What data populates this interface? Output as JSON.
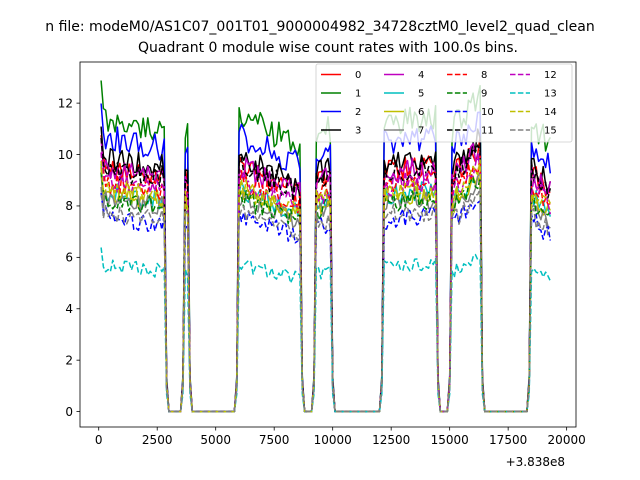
{
  "figure": {
    "suptitle": "n file: modeM0/AS1C07_001T01_9000004982_34728cztM0_level2_quad_clean",
    "title": "Quadrant 0 module wise count rates with 100.0s bins.",
    "x_offset_label": "+3.838e8"
  },
  "chart_data": {
    "type": "line",
    "title": "Quadrant 0 module wise count rates with 100.0s bins.",
    "xlabel": "",
    "ylabel": "",
    "x_offset": 383800000,
    "xlim": [
      -800,
      20400
    ],
    "ylim": [
      -0.6,
      13.6
    ],
    "xticks": [
      0,
      2500,
      5000,
      7500,
      10000,
      12500,
      15000,
      17500,
      20000
    ],
    "xtick_labels": [
      "0",
      "2500",
      "5000",
      "7500",
      "10000",
      "12500",
      "15000",
      "17500",
      "20000"
    ],
    "yticks": [
      0,
      2,
      4,
      6,
      8,
      10,
      12
    ],
    "ytick_labels": [
      "0",
      "2",
      "4",
      "6",
      "8",
      "10",
      "12"
    ],
    "grid": false,
    "legend_position": "top-right",
    "segments": [
      {
        "x_start": 100,
        "x_end": 2800,
        "start_factor": 1.0,
        "end_factor": 0.96
      },
      {
        "x_start": 3700,
        "x_end": 3800,
        "start_factor": 0.95,
        "end_factor": 0.95
      },
      {
        "x_start": 6000,
        "x_end": 8600,
        "start_factor": 1.0,
        "end_factor": 0.9
      },
      {
        "x_start": 9300,
        "x_end": 9900,
        "start_factor": 0.95,
        "end_factor": 0.95
      },
      {
        "x_start": 12200,
        "x_end": 14400,
        "start_factor": 0.98,
        "end_factor": 1.0
      },
      {
        "x_start": 15100,
        "x_end": 16300,
        "start_factor": 0.95,
        "end_factor": 1.08
      },
      {
        "x_start": 18500,
        "x_end": 19300,
        "start_factor": 0.98,
        "end_factor": 0.9
      }
    ],
    "series": [
      {
        "name": "0",
        "level": 9.6,
        "color": "#ff0000",
        "dash": "solid"
      },
      {
        "name": "1",
        "level": 11.5,
        "color": "#008000",
        "dash": "solid"
      },
      {
        "name": "2",
        "level": 10.7,
        "color": "#0000ff",
        "dash": "solid"
      },
      {
        "name": "3",
        "level": 9.9,
        "color": "#000000",
        "dash": "solid"
      },
      {
        "name": "4",
        "level": 9.5,
        "color": "#bf00bf",
        "dash": "solid"
      },
      {
        "name": "5",
        "level": 8.6,
        "color": "#00bfbf",
        "dash": "solid"
      },
      {
        "name": "6",
        "level": 8.5,
        "color": "#bfbf00",
        "dash": "solid"
      },
      {
        "name": "7",
        "level": 8.3,
        "color": "#808080",
        "dash": "solid"
      },
      {
        "name": "8",
        "level": 9.0,
        "color": "#ff0000",
        "dash": "dashed"
      },
      {
        "name": "9",
        "level": 8.3,
        "color": "#008000",
        "dash": "dashed"
      },
      {
        "name": "10",
        "level": 7.6,
        "color": "#0000ff",
        "dash": "dashed"
      },
      {
        "name": "11",
        "level": 9.5,
        "color": "#000000",
        "dash": "dashed"
      },
      {
        "name": "12",
        "level": 9.0,
        "color": "#bf00bf",
        "dash": "dashed"
      },
      {
        "name": "13",
        "level": 5.7,
        "color": "#00bfbf",
        "dash": "dashed"
      },
      {
        "name": "14",
        "level": 8.7,
        "color": "#bfbf00",
        "dash": "dashed"
      },
      {
        "name": "15",
        "level": 7.8,
        "color": "#808080",
        "dash": "dashed"
      }
    ]
  }
}
